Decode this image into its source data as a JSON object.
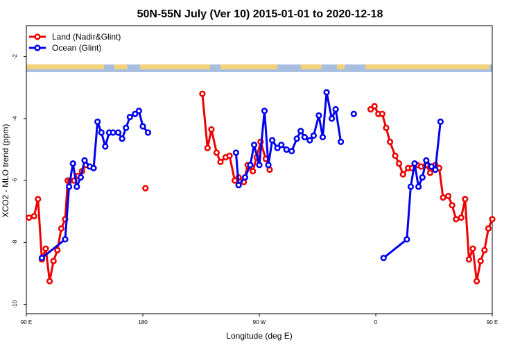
{
  "chart_data": {
    "type": "line",
    "title": "50N-55N July (Ver 10)   2015-01-01 to 2020-12-18",
    "xlabel": "Longitude (deg E)",
    "ylabel": "XCO2 - MLO trend (ppm)",
    "xlim": [
      90,
      450
    ],
    "ylim": [
      -10.3,
      -1.0
    ],
    "x_ticks": [
      {
        "value": 90,
        "label": "90 E"
      },
      {
        "value": 180,
        "label": "180"
      },
      {
        "value": 270,
        "label": "90 W"
      },
      {
        "value": 360,
        "label": "0"
      },
      {
        "value": 450,
        "label": "90 E"
      }
    ],
    "y_ticks": [
      {
        "value": -2,
        "label": "-2"
      },
      {
        "value": -4,
        "label": "-4"
      },
      {
        "value": -6,
        "label": "-6"
      },
      {
        "value": -8,
        "label": "-8"
      },
      {
        "value": -10,
        "label": "-10"
      }
    ],
    "legend_position": "top-left",
    "grid": false,
    "land_ocean_strip": {
      "y_range": [
        -2.5,
        -2.25
      ],
      "land_color": "#f5d27a",
      "ocean_color": "#a8bedf"
    },
    "series": [
      {
        "name": "Land (Nadir&Glint)",
        "color": "#ee0000",
        "segments": [
          [
            [
              92,
              -7.2
            ],
            [
              96,
              -7.15
            ],
            [
              99,
              -6.6
            ],
            [
              102,
              -8.55
            ],
            [
              105,
              -8.2
            ],
            [
              108,
              -9.25
            ],
            [
              111,
              -8.6
            ],
            [
              114,
              -8.25
            ],
            [
              117,
              -7.55
            ],
            [
              120,
              -7.25
            ],
            [
              122,
              -6.0
            ],
            [
              124,
              -6.0
            ],
            [
              127,
              -6.0
            ],
            [
              130,
              -5.85
            ],
            [
              133,
              -5.7
            ],
            [
              136,
              -5.5
            ]
          ],
          [
            [
              182,
              -6.25
            ]
          ],
          [
            [
              226,
              -3.2
            ],
            [
              230,
              -4.95
            ],
            [
              233,
              -4.35
            ],
            [
              237,
              -5.1
            ],
            [
              240,
              -5.4
            ],
            [
              244,
              -5.25
            ],
            [
              247,
              -5.2
            ],
            [
              251,
              -6.0
            ],
            [
              254,
              -5.9
            ],
            [
              258,
              -6.05
            ],
            [
              261,
              -5.5
            ],
            [
              265,
              -5.7
            ],
            [
              268,
              -5.25
            ],
            [
              271,
              -4.75
            ],
            [
              275,
              -5.3
            ],
            [
              278,
              -5.65
            ]
          ],
          [
            [
              356,
              -3.7
            ],
            [
              359,
              -3.6
            ],
            [
              362,
              -3.85
            ],
            [
              365,
              -3.85
            ],
            [
              368,
              -4.3
            ],
            [
              371,
              -4.75
            ],
            [
              375,
              -5.2
            ],
            [
              378,
              -5.45
            ],
            [
              381,
              -5.8
            ],
            [
              385,
              -5.6
            ],
            [
              388,
              -5.6
            ],
            [
              392,
              -5.5
            ],
            [
              395,
              -5.55
            ],
            [
              399,
              -5.5
            ],
            [
              402,
              -5.75
            ],
            [
              406,
              -5.5
            ],
            [
              409,
              -5.6
            ],
            [
              412,
              -6.55
            ],
            [
              416,
              -6.5
            ],
            [
              419,
              -6.8
            ],
            [
              422,
              -7.25
            ],
            [
              426,
              -7.2
            ],
            [
              429,
              -6.6
            ],
            [
              432,
              -8.55
            ],
            [
              435,
              -8.2
            ],
            [
              438,
              -9.25
            ],
            [
              441,
              -8.6
            ],
            [
              444,
              -8.25
            ],
            [
              447,
              -7.55
            ],
            [
              450,
              -7.25
            ]
          ]
        ]
      },
      {
        "name": "Ocean (Glint)",
        "color": "#0000ee",
        "segments": [
          [
            [
              102,
              -8.5
            ],
            [
              120,
              -7.9
            ],
            [
              123,
              -6.2
            ],
            [
              126,
              -5.45
            ],
            [
              129,
              -6.2
            ],
            [
              132,
              -5.9
            ],
            [
              135,
              -5.35
            ],
            [
              139,
              -5.55
            ],
            [
              142,
              -5.6
            ],
            [
              145,
              -4.1
            ],
            [
              148,
              -4.45
            ],
            [
              151,
              -4.9
            ],
            [
              154,
              -4.45
            ],
            [
              157,
              -4.45
            ],
            [
              161,
              -4.45
            ],
            [
              164,
              -4.65
            ],
            [
              167,
              -4.3
            ],
            [
              170,
              -3.95
            ],
            [
              174,
              -3.85
            ],
            [
              177,
              -3.75
            ],
            [
              180,
              -4.25
            ],
            [
              184,
              -4.45
            ]
          ],
          [
            [
              252,
              -5.1
            ],
            [
              254,
              -6.15
            ],
            [
              259,
              -5.9
            ],
            [
              263,
              -5.5
            ],
            [
              266,
              -4.85
            ],
            [
              270,
              -5.5
            ],
            [
              274,
              -3.75
            ],
            [
              277,
              -5.5
            ],
            [
              280,
              -4.7
            ],
            [
              284,
              -4.95
            ],
            [
              287,
              -4.85
            ],
            [
              291,
              -5.0
            ],
            [
              295,
              -5.05
            ],
            [
              299,
              -4.65
            ],
            [
              302,
              -4.4
            ],
            [
              305,
              -4.6
            ],
            [
              309,
              -4.7
            ],
            [
              312,
              -4.55
            ],
            [
              316,
              -3.9
            ],
            [
              319,
              -4.6
            ],
            [
              322,
              -3.15
            ],
            [
              326,
              -4.0
            ],
            [
              329,
              -3.7
            ],
            [
              333,
              -4.75
            ]
          ],
          [
            [
              343,
              -3.85
            ]
          ],
          [
            [
              366,
              -8.5
            ],
            [
              384,
              -7.9
            ],
            [
              387,
              -6.2
            ],
            [
              390,
              -5.45
            ],
            [
              393,
              -6.2
            ],
            [
              396,
              -5.9
            ],
            [
              399,
              -5.35
            ],
            [
              403,
              -5.55
            ],
            [
              406,
              -5.65
            ],
            [
              410,
              -4.1
            ]
          ]
        ]
      }
    ]
  }
}
